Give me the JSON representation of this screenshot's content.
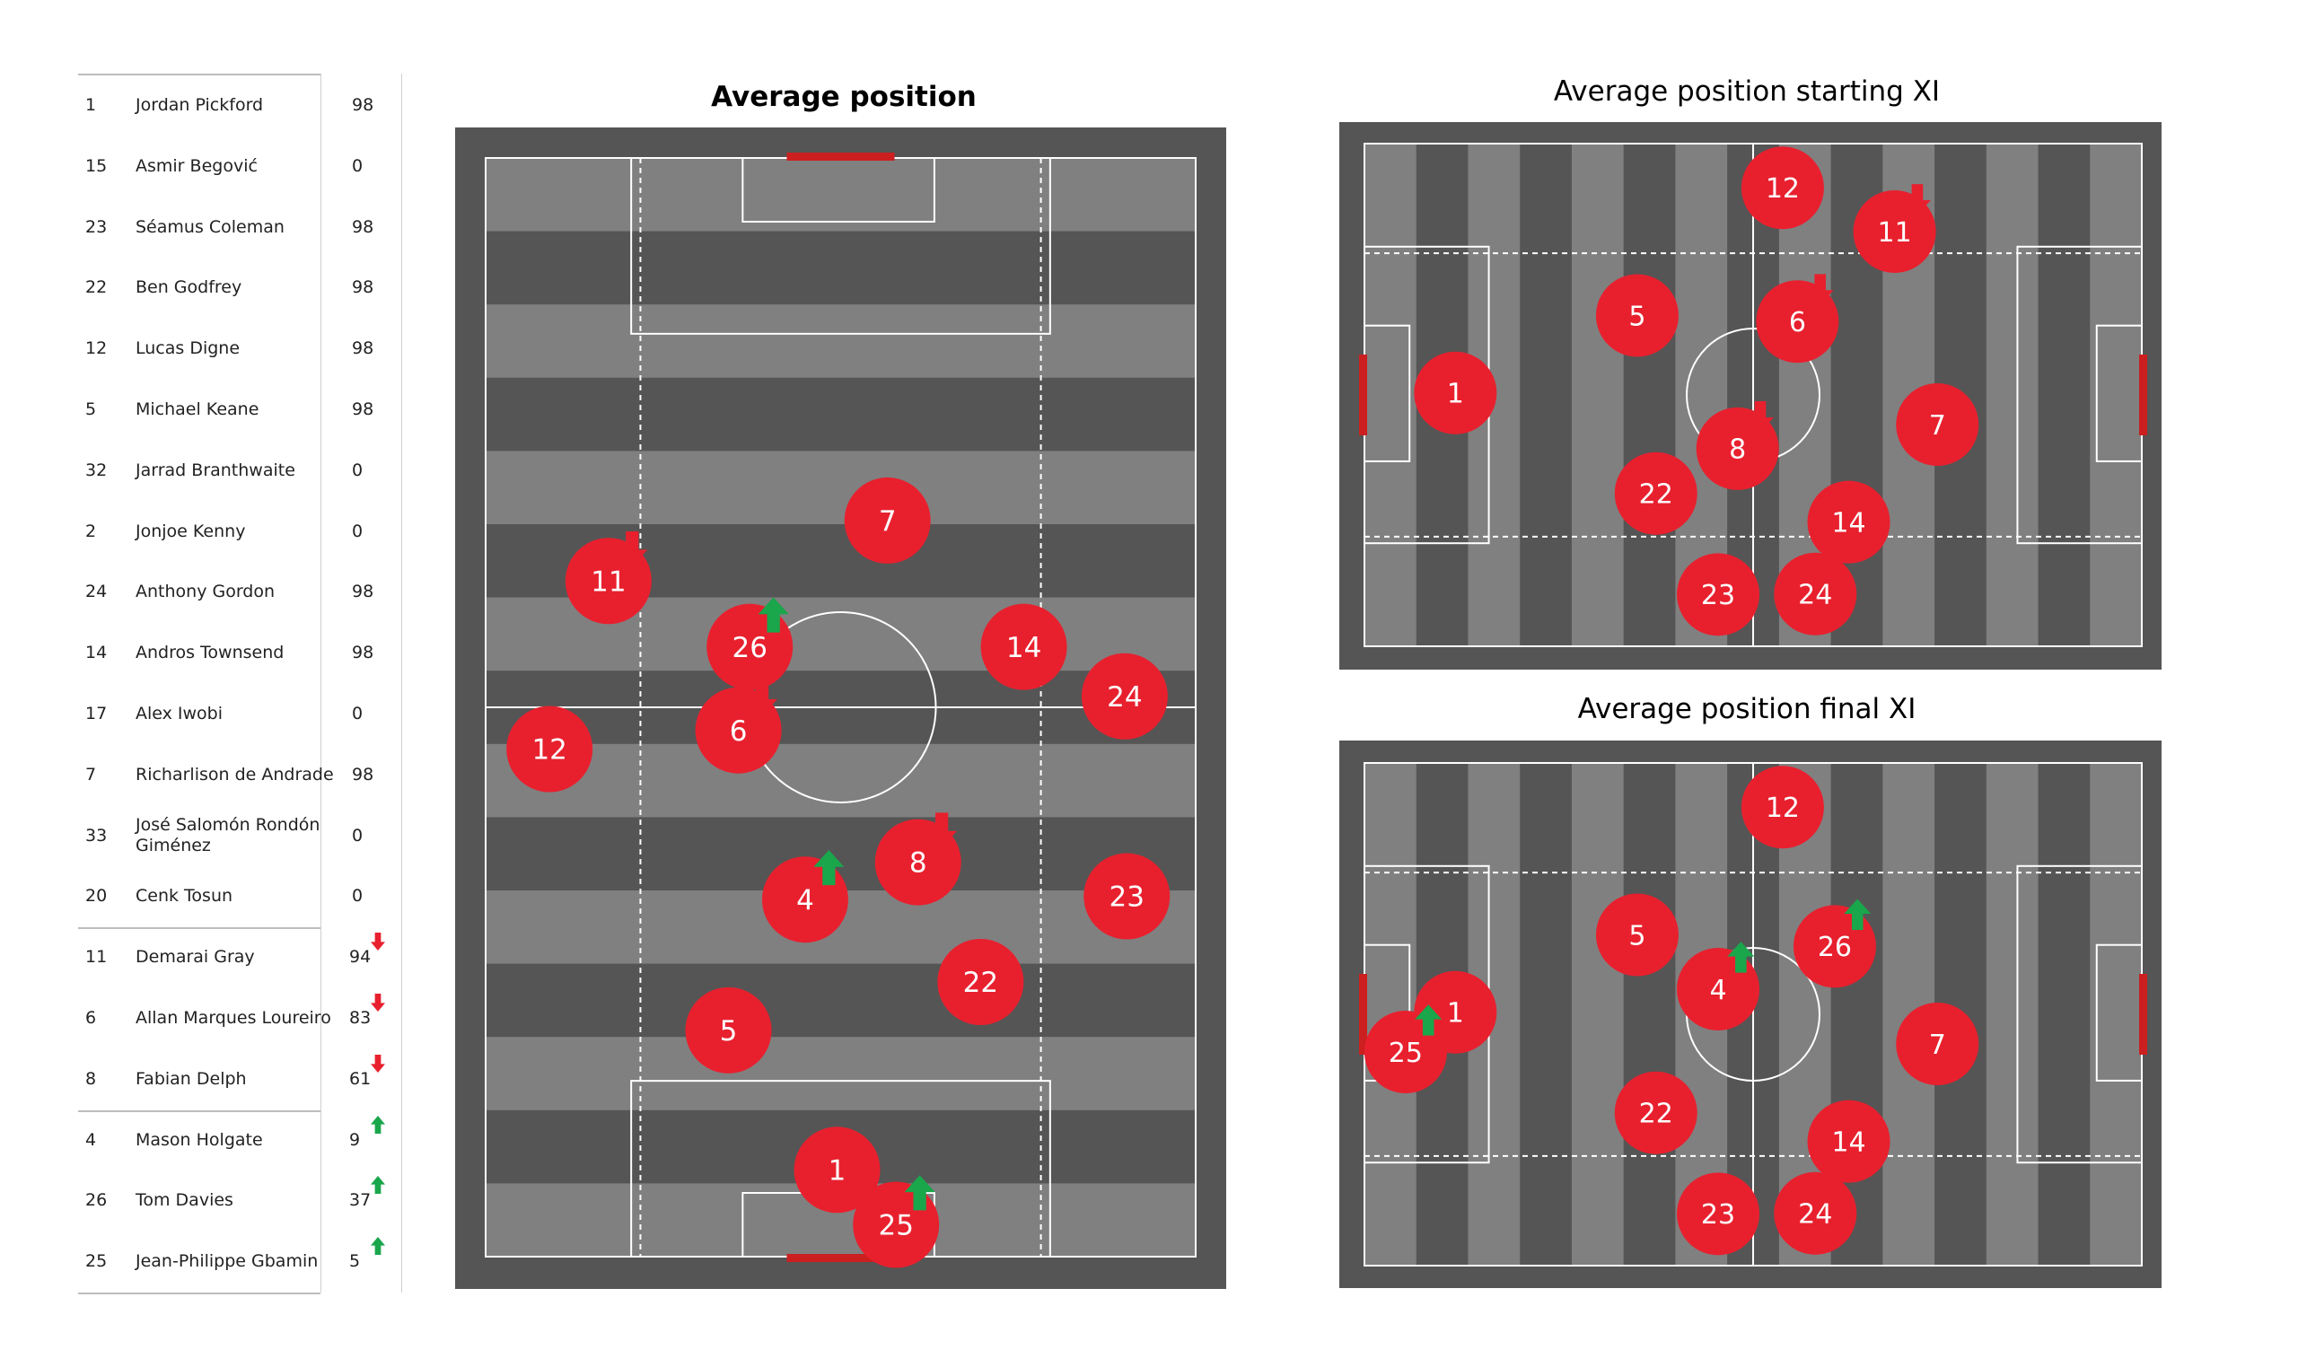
{
  "roster": [
    {
      "number": "1",
      "name": "Jordan Pickford",
      "minutes": "98",
      "change": ""
    },
    {
      "number": "15",
      "name": "Asmir Begović",
      "minutes": "0",
      "change": ""
    },
    {
      "number": "23",
      "name": "Séamus Coleman",
      "minutes": "98",
      "change": ""
    },
    {
      "number": "22",
      "name": "Ben Godfrey",
      "minutes": "98",
      "change": ""
    },
    {
      "number": "12",
      "name": "Lucas Digne",
      "minutes": "98",
      "change": ""
    },
    {
      "number": "5",
      "name": "Michael Keane",
      "minutes": "98",
      "change": ""
    },
    {
      "number": "32",
      "name": "Jarrad Branthwaite",
      "minutes": "0",
      "change": ""
    },
    {
      "number": "2",
      "name": "Jonjoe Kenny",
      "minutes": "0",
      "change": ""
    },
    {
      "number": "24",
      "name": "Anthony Gordon",
      "minutes": "98",
      "change": ""
    },
    {
      "number": "14",
      "name": "Andros Townsend",
      "minutes": "98",
      "change": ""
    },
    {
      "number": "17",
      "name": "Alex Iwobi",
      "minutes": "0",
      "change": ""
    },
    {
      "number": "7",
      "name": "Richarlison de Andrade",
      "minutes": "98",
      "change": ""
    },
    {
      "number": "33",
      "name": "José Salomón Rondón Giménez",
      "minutes": "0",
      "change": ""
    },
    {
      "number": "20",
      "name": "Cenk Tosun",
      "minutes": "0",
      "change": ""
    },
    {
      "number": "11",
      "name": "Demarai Gray",
      "minutes": "94",
      "change": "off"
    },
    {
      "number": "6",
      "name": "Allan Marques Loureiro",
      "minutes": "83",
      "change": "off"
    },
    {
      "number": "8",
      "name": "Fabian Delph",
      "minutes": "61",
      "change": "off"
    },
    {
      "number": "4",
      "name": "Mason Holgate",
      "minutes": "9",
      "change": "on"
    },
    {
      "number": "26",
      "name": "Tom Davies",
      "minutes": "37",
      "change": "on"
    },
    {
      "number": "25",
      "name": "Jean-Philippe Gbamin",
      "minutes": "5",
      "change": "on"
    }
  ],
  "colors": {
    "marker": "#e8202e",
    "arrow_on": "#1aa64b",
    "arrow_off": "#e8202e",
    "pitch_border": "#555555",
    "stripe_light": "#808080",
    "stripe_dark": "#555555",
    "lines": "#ffffff",
    "goal": "#cc1f1f"
  },
  "panels": {
    "main": {
      "title": "Average position",
      "markers": [
        {
          "label": "7",
          "x": 0.566,
          "y": 0.67,
          "change": ""
        },
        {
          "label": "11",
          "x": 0.173,
          "y": 0.615,
          "change": "off"
        },
        {
          "label": "26",
          "x": 0.372,
          "y": 0.555,
          "change": "on"
        },
        {
          "label": "14",
          "x": 0.758,
          "y": 0.555,
          "change": ""
        },
        {
          "label": "24",
          "x": 0.9,
          "y": 0.51,
          "change": ""
        },
        {
          "label": "12",
          "x": 0.09,
          "y": 0.462,
          "change": ""
        },
        {
          "label": "6",
          "x": 0.356,
          "y": 0.479,
          "change": "off"
        },
        {
          "label": "4",
          "x": 0.45,
          "y": 0.325,
          "change": "on"
        },
        {
          "label": "8",
          "x": 0.609,
          "y": 0.359,
          "change": "off"
        },
        {
          "label": "23",
          "x": 0.903,
          "y": 0.328,
          "change": ""
        },
        {
          "label": "22",
          "x": 0.697,
          "y": 0.25,
          "change": ""
        },
        {
          "label": "5",
          "x": 0.342,
          "y": 0.206,
          "change": ""
        },
        {
          "label": "1",
          "x": 0.495,
          "y": 0.079,
          "change": ""
        },
        {
          "label": "25",
          "x": 0.578,
          "y": 0.029,
          "change": "on"
        }
      ]
    },
    "starting": {
      "title": "Average position starting XI",
      "markers": [
        {
          "label": "12",
          "x": 0.538,
          "y": 0.912,
          "change": ""
        },
        {
          "label": "11",
          "x": 0.682,
          "y": 0.825,
          "change": "off"
        },
        {
          "label": "5",
          "x": 0.351,
          "y": 0.658,
          "change": ""
        },
        {
          "label": "6",
          "x": 0.557,
          "y": 0.646,
          "change": "off"
        },
        {
          "label": "1",
          "x": 0.117,
          "y": 0.504,
          "change": ""
        },
        {
          "label": "7",
          "x": 0.737,
          "y": 0.441,
          "change": ""
        },
        {
          "label": "8",
          "x": 0.48,
          "y": 0.393,
          "change": "off"
        },
        {
          "label": "22",
          "x": 0.375,
          "y": 0.304,
          "change": ""
        },
        {
          "label": "14",
          "x": 0.623,
          "y": 0.247,
          "change": ""
        },
        {
          "label": "23",
          "x": 0.455,
          "y": 0.103,
          "change": ""
        },
        {
          "label": "24",
          "x": 0.58,
          "y": 0.104,
          "change": ""
        }
      ]
    },
    "final": {
      "title": "Average position final XI",
      "markers": [
        {
          "label": "12",
          "x": 0.538,
          "y": 0.912,
          "change": ""
        },
        {
          "label": "5",
          "x": 0.351,
          "y": 0.658,
          "change": ""
        },
        {
          "label": "26",
          "x": 0.605,
          "y": 0.635,
          "change": "on"
        },
        {
          "label": "4",
          "x": 0.455,
          "y": 0.55,
          "change": "on"
        },
        {
          "label": "1",
          "x": 0.117,
          "y": 0.504,
          "change": ""
        },
        {
          "label": "25",
          "x": 0.053,
          "y": 0.425,
          "change": "on"
        },
        {
          "label": "7",
          "x": 0.737,
          "y": 0.441,
          "change": ""
        },
        {
          "label": "22",
          "x": 0.375,
          "y": 0.304,
          "change": ""
        },
        {
          "label": "14",
          "x": 0.623,
          "y": 0.247,
          "change": ""
        },
        {
          "label": "23",
          "x": 0.455,
          "y": 0.103,
          "change": ""
        },
        {
          "label": "24",
          "x": 0.58,
          "y": 0.104,
          "change": ""
        }
      ]
    }
  }
}
